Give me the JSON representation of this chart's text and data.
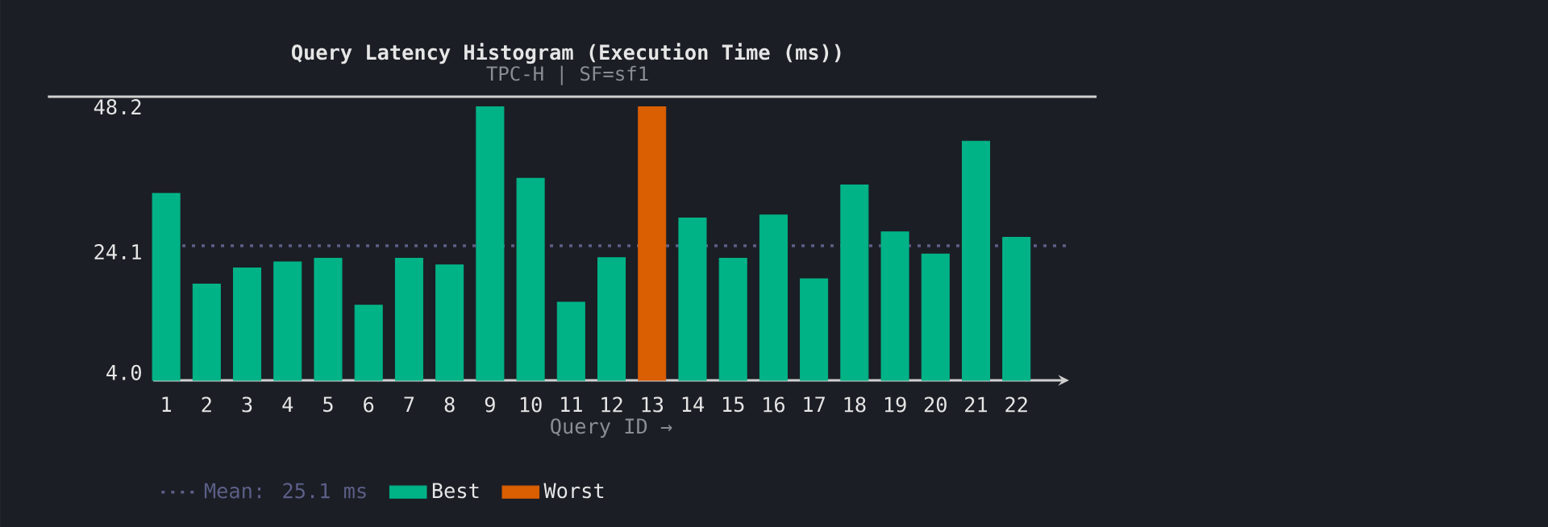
{
  "chart_data": {
    "type": "bar",
    "title": "Query Latency Histogram (Execution Time (ms))",
    "subtitle": "TPC-H | SF=sf1",
    "xlabel": "Query ID →",
    "categories": [
      "1",
      "2",
      "3",
      "4",
      "5",
      "6",
      "7",
      "8",
      "9",
      "10",
      "11",
      "12",
      "13",
      "14",
      "15",
      "16",
      "17",
      "18",
      "19",
      "20",
      "21",
      "22"
    ],
    "series": [
      {
        "name": "Best",
        "color": "#00b386",
        "values": [
          33.8,
          18.7,
          21.4,
          22.4,
          23.0,
          15.2,
          23.0,
          21.9,
          48.2,
          36.3,
          15.7,
          23.1,
          null,
          29.7,
          23.0,
          30.2,
          19.6,
          35.2,
          27.4,
          23.7,
          42.5,
          26.5
        ]
      },
      {
        "name": "Worst",
        "color": "#d95f02",
        "values": [
          null,
          null,
          null,
          null,
          null,
          null,
          null,
          null,
          null,
          null,
          null,
          null,
          48.2,
          null,
          null,
          null,
          null,
          null,
          null,
          null,
          null,
          null
        ]
      }
    ],
    "ylim": [
      2.7,
      49.9
    ],
    "yticks": [
      {
        "value": 4.0,
        "label": "4.0"
      },
      24.1,
      48.2
    ],
    "ref_lines": [
      {
        "axis": "y",
        "value": 25.1,
        "label": "Mean: 25.1 ms",
        "color": "#5c5f86",
        "line_style": "dotted"
      }
    ],
    "grid": false,
    "legend": "bottom left"
  }
}
